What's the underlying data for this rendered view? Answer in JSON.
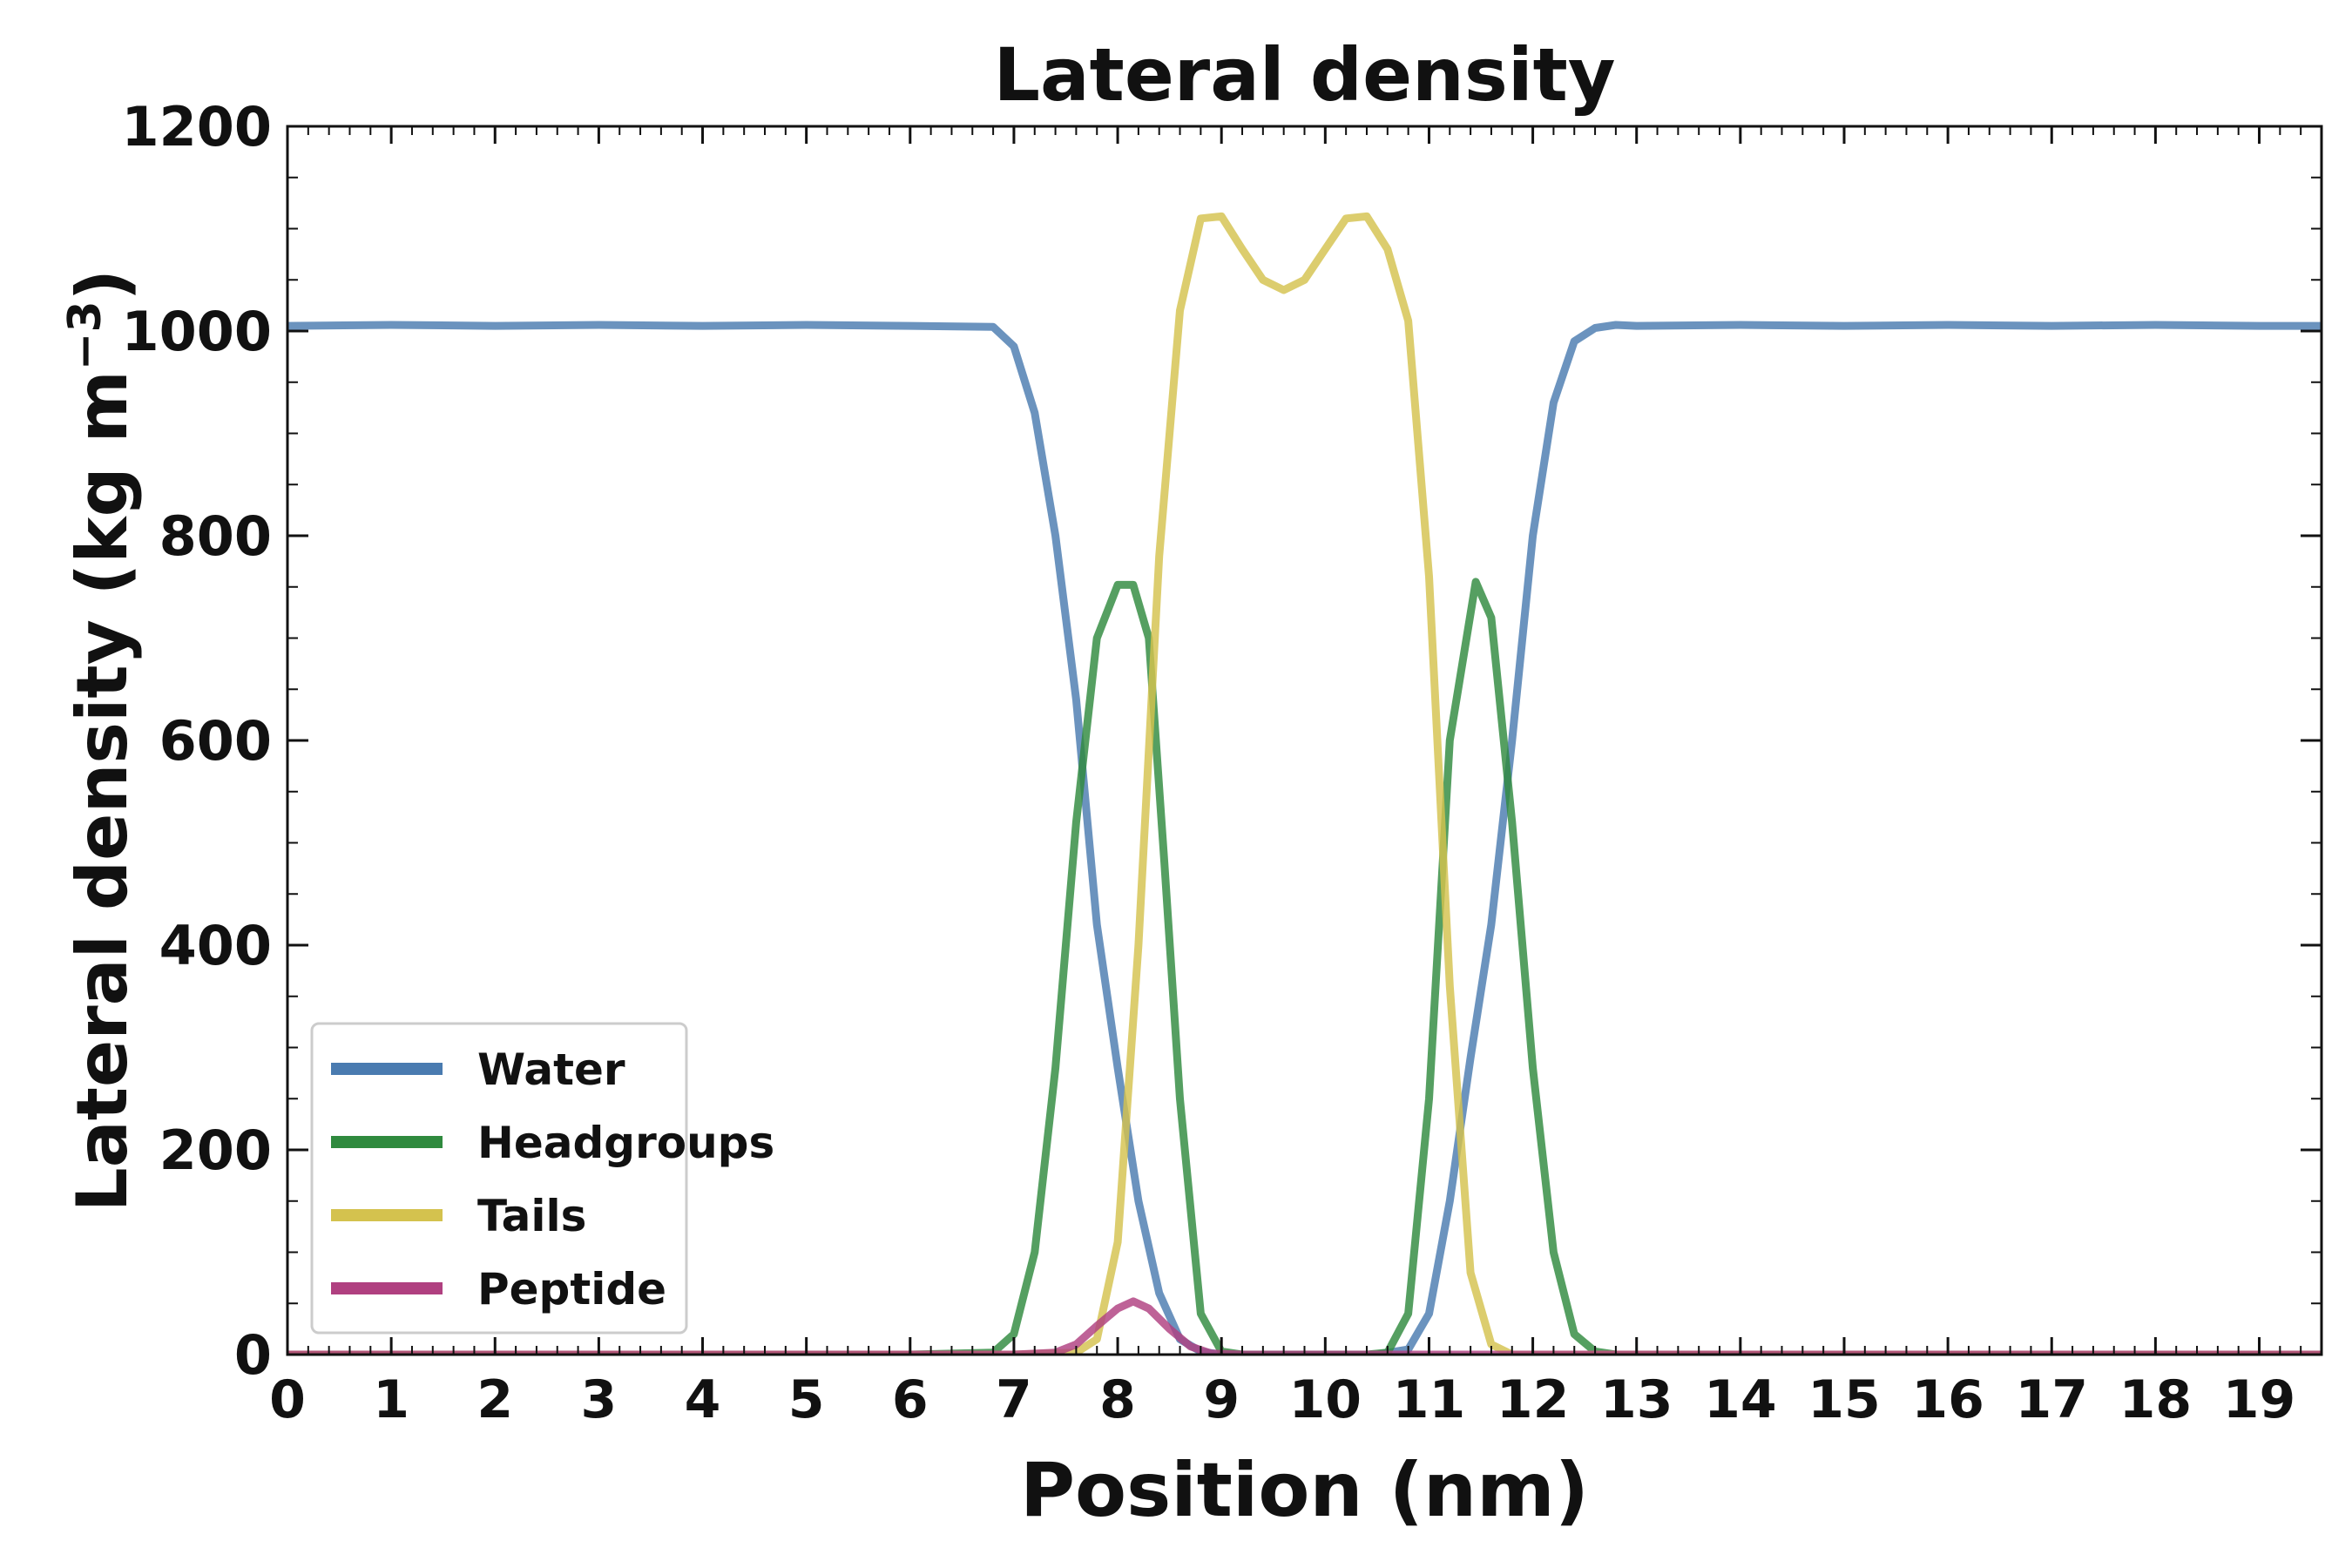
{
  "chart_data": {
    "type": "line",
    "title": "Lateral density",
    "xlabel": "Position (nm)",
    "ylabel": "Lateral density (kg m",
    "ylabel_superscript": "−3",
    "ylabel_suffix": ")",
    "xlim": [
      0,
      19.6
    ],
    "ylim": [
      0,
      1200
    ],
    "x_ticks": [
      0,
      1,
      2,
      3,
      4,
      5,
      6,
      7,
      8,
      9,
      10,
      11,
      12,
      13,
      14,
      15,
      16,
      17,
      18,
      19
    ],
    "x_tick_labels": [
      "0",
      "1",
      "2",
      "3",
      "4",
      "5",
      "6",
      "7",
      "8",
      "9",
      "10",
      "11",
      "12",
      "13",
      "14",
      "15",
      "16",
      "17",
      "18",
      "19"
    ],
    "y_ticks": [
      0,
      200,
      400,
      600,
      800,
      1000,
      1200
    ],
    "y_tick_labels": [
      "0",
      "200",
      "400",
      "600",
      "800",
      "1000",
      "1200"
    ],
    "grid": false,
    "legend_position": "bottom-left",
    "series": [
      {
        "name": "Water",
        "color": "#4a7bb0",
        "x": [
          0,
          1,
          2,
          3,
          4,
          5,
          6,
          6.8,
          7.0,
          7.2,
          7.4,
          7.6,
          7.8,
          8.0,
          8.2,
          8.4,
          8.6,
          8.8,
          9.0,
          9.5,
          10.0,
          10.5,
          10.8,
          11.0,
          11.2,
          11.4,
          11.6,
          11.8,
          12.0,
          12.2,
          12.4,
          12.6,
          12.8,
          13.0,
          14,
          15,
          16,
          17,
          18,
          19,
          19.6
        ],
        "y": [
          1005,
          1006,
          1005,
          1006,
          1005,
          1006,
          1005,
          1004,
          985,
          920,
          800,
          640,
          420,
          280,
          150,
          60,
          15,
          3,
          0,
          0,
          0,
          0,
          5,
          40,
          150,
          290,
          420,
          600,
          800,
          930,
          990,
          1003,
          1006,
          1005,
          1006,
          1005,
          1006,
          1005,
          1006,
          1005,
          1005
        ]
      },
      {
        "name": "Headgroups",
        "color": "#2f8a3e",
        "x": [
          0,
          6,
          6.8,
          7.0,
          7.2,
          7.4,
          7.6,
          7.8,
          8.0,
          8.15,
          8.3,
          8.45,
          8.6,
          8.8,
          9.0,
          9.2,
          10.0,
          10.4,
          10.6,
          10.8,
          11.0,
          11.2,
          11.45,
          11.6,
          11.8,
          12.0,
          12.2,
          12.4,
          12.6,
          12.8,
          13.0,
          14,
          19.6
        ],
        "y": [
          0,
          0,
          2,
          20,
          100,
          280,
          520,
          700,
          752,
          752,
          700,
          480,
          250,
          40,
          3,
          0,
          0,
          0,
          2,
          40,
          250,
          600,
          755,
          720,
          520,
          280,
          100,
          20,
          3,
          0,
          0,
          0,
          0
        ]
      },
      {
        "name": "Tails",
        "color": "#d4c24e",
        "x": [
          0,
          7.0,
          7.6,
          7.8,
          8.0,
          8.2,
          8.4,
          8.6,
          8.8,
          9.0,
          9.2,
          9.4,
          9.6,
          9.8,
          10.0,
          10.2,
          10.4,
          10.6,
          10.8,
          11.0,
          11.2,
          11.4,
          11.6,
          11.8,
          12.0,
          19.6
        ],
        "y": [
          0,
          0,
          2,
          15,
          110,
          400,
          780,
          1020,
          1110,
          1112,
          1080,
          1050,
          1040,
          1050,
          1080,
          1110,
          1112,
          1080,
          1010,
          760,
          360,
          80,
          10,
          0,
          0,
          0
        ]
      },
      {
        "name": "Peptide",
        "color": "#b04080",
        "x": [
          0,
          7.0,
          7.4,
          7.6,
          7.8,
          8.0,
          8.15,
          8.3,
          8.5,
          8.7,
          8.9,
          9.2,
          19.6
        ],
        "y": [
          0,
          0,
          2,
          10,
          28,
          45,
          52,
          45,
          25,
          8,
          1,
          0,
          0
        ]
      }
    ]
  }
}
